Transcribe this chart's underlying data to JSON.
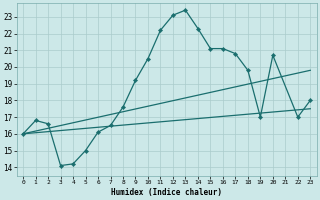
{
  "title": "",
  "xlabel": "Humidex (Indice chaleur)",
  "bg_color": "#cce8e8",
  "grid_color": "#aacccc",
  "line_color": "#1a6e6e",
  "xlim": [
    -0.5,
    23.5
  ],
  "ylim": [
    13.5,
    23.8
  ],
  "yticks": [
    14,
    15,
    16,
    17,
    18,
    19,
    20,
    21,
    22,
    23
  ],
  "xticks": [
    0,
    1,
    2,
    3,
    4,
    5,
    6,
    7,
    8,
    9,
    10,
    11,
    12,
    13,
    14,
    15,
    16,
    17,
    18,
    19,
    20,
    21,
    22,
    23
  ],
  "line1_x": [
    0,
    1,
    2,
    3,
    4,
    5,
    6,
    7,
    8,
    9,
    10,
    11,
    12,
    13,
    14,
    15,
    16,
    17,
    18,
    19,
    20,
    22,
    23
  ],
  "line1_y": [
    16.0,
    16.8,
    16.6,
    14.1,
    14.2,
    15.0,
    16.1,
    16.5,
    17.6,
    19.2,
    20.5,
    22.2,
    23.1,
    23.4,
    22.3,
    21.1,
    21.1,
    20.8,
    19.8,
    17.0,
    20.7,
    17.0,
    18.0
  ],
  "line2_x": [
    0,
    23
  ],
  "line2_y": [
    16.0,
    19.8
  ],
  "line3_x": [
    0,
    23
  ],
  "line3_y": [
    16.0,
    17.5
  ]
}
